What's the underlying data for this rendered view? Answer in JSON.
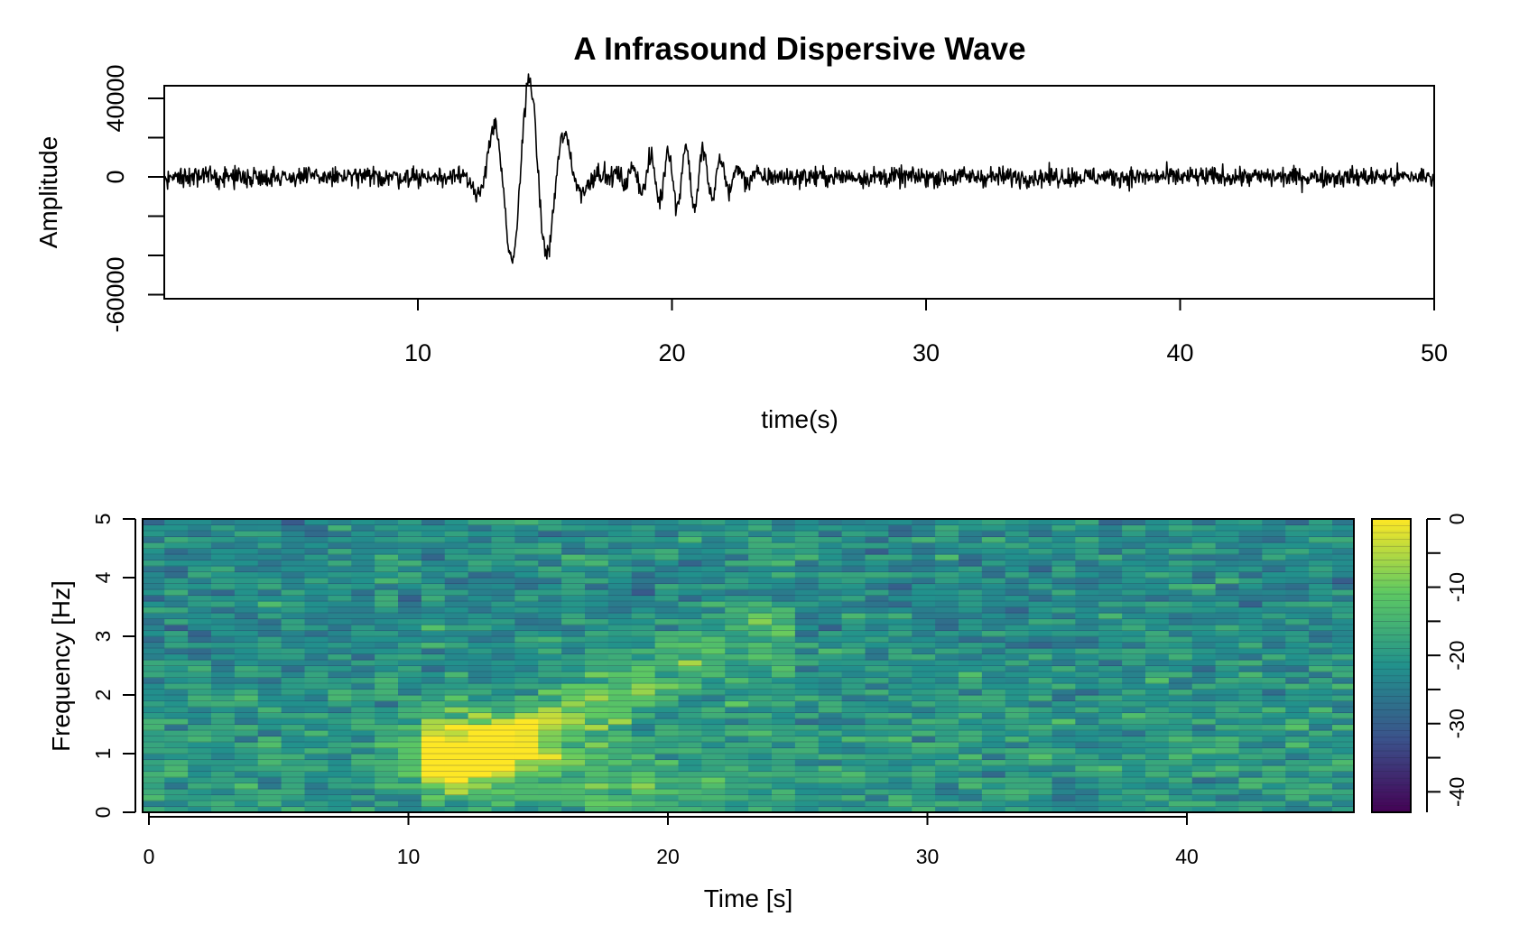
{
  "chart_data": [
    {
      "type": "line",
      "title": "A Infrasound Dispersive Wave",
      "xlabel": "time(s)",
      "ylabel": "Amplitude",
      "xlim": [
        0,
        50
      ],
      "ylim": [
        -62000,
        46000
      ],
      "x_ticks": [
        10,
        20,
        30,
        40,
        50
      ],
      "x_tick_labels": [
        "10",
        "20",
        "30",
        "40",
        "50"
      ],
      "y_ticks": [
        -60000,
        -40000,
        -20000,
        0,
        20000,
        40000
      ],
      "y_tick_labels": [
        "-60000",
        "",
        "",
        "0",
        "",
        "40000"
      ],
      "noise_amplitude": 2500,
      "wave_packets": [
        {
          "t0": 14.3,
          "width": 1.6,
          "frequency": 0.7,
          "amplitude": 50000
        },
        {
          "t0": 20.5,
          "width": 1.9,
          "frequency": 1.45,
          "amplitude": 16000
        }
      ],
      "series": [
        {
          "name": "Amplitude",
          "sample_rate_hz": 40,
          "duration_s": 50
        }
      ]
    },
    {
      "type": "heatmap",
      "xlabel": "Time [s]",
      "ylabel": "Frequency [Hz]",
      "xlim": [
        0,
        46.5
      ],
      "ylim": [
        0,
        5
      ],
      "x_ticks": [
        0,
        10,
        20,
        30,
        40
      ],
      "x_tick_labels": [
        "0",
        "10",
        "20",
        "30",
        "40"
      ],
      "y_ticks": [
        0,
        1,
        2,
        3,
        4,
        5
      ],
      "y_tick_labels": [
        "0",
        "1",
        "2",
        "3",
        "4",
        "5"
      ],
      "color_scale": {
        "name": "viridis",
        "range": [
          -43,
          0
        ],
        "ticks": [
          0,
          -10,
          -20,
          -30,
          -40
        ],
        "tick_labels": [
          "0",
          "-10",
          "-20",
          "-30",
          "-40"
        ],
        "stops": [
          "#440154",
          "#3b528b",
          "#21918c",
          "#5ec962",
          "#fde725"
        ]
      },
      "time_bin_s": 0.9,
      "freq_bin_hz": 0.1,
      "background_db": -22,
      "energy_ridge": {
        "start_time_s": 12.5,
        "start_freq_hz": 0.95,
        "end_time_s": 23.0,
        "end_freq_hz": 3.0
      },
      "peak": {
        "time_s": 12.5,
        "frequency_hz": 1.0,
        "db": -1
      }
    }
  ]
}
